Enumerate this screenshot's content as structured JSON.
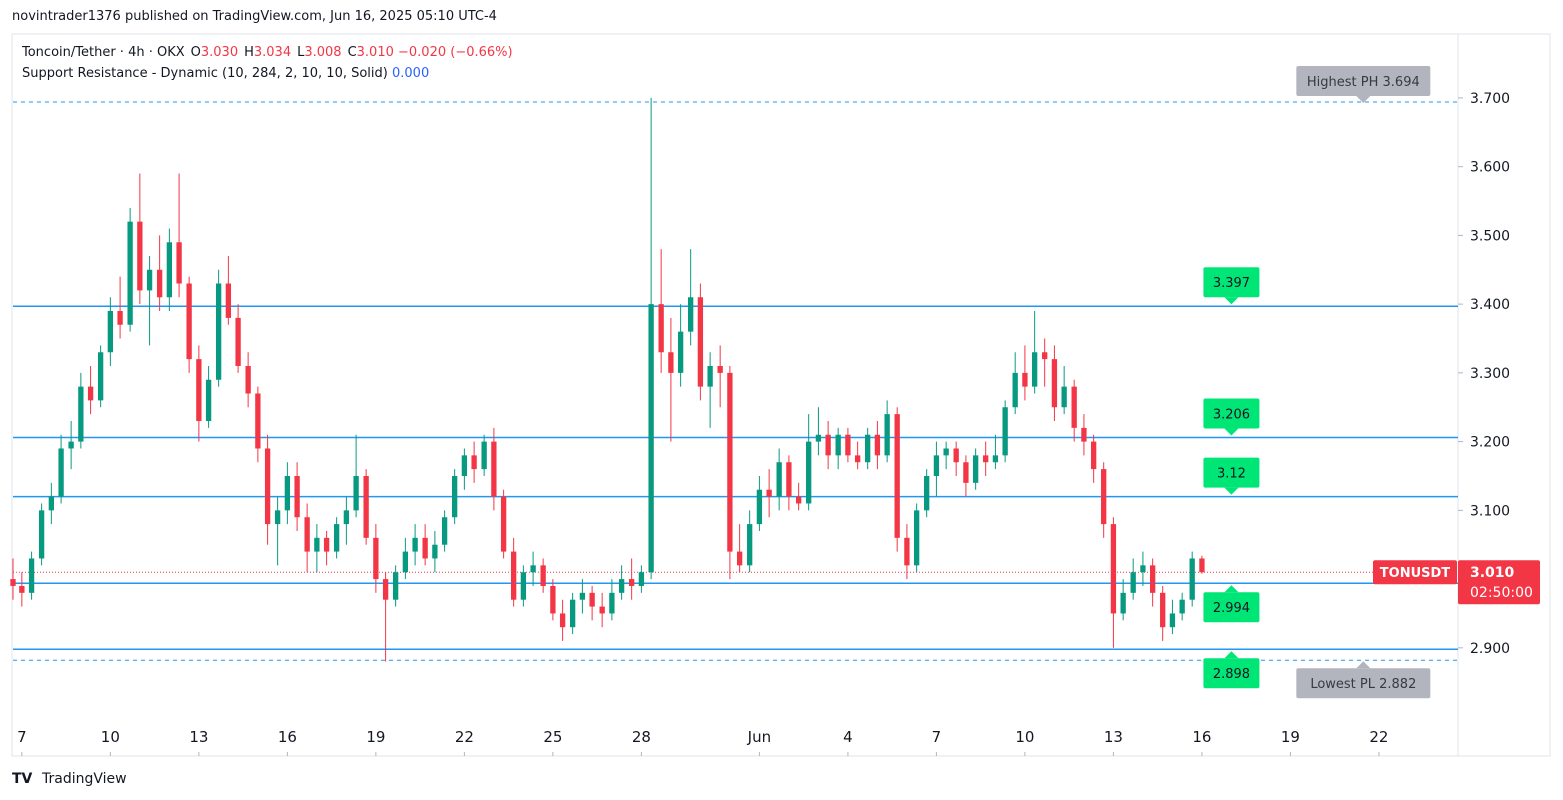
{
  "header": {
    "byline": "novintrader1376 published on TradingView.com, Jun 16, 2025 05:10 UTC-4",
    "pair": "Toncoin/Tether · 4h · OKX",
    "legend_values": [
      [
        "O",
        "3.030"
      ],
      [
        "H",
        "3.034"
      ],
      [
        "L",
        "3.008"
      ],
      [
        "C",
        "3.010"
      ]
    ],
    "change": "−0.020 (−0.66%)",
    "indicator": "Support Resistance - Dynamic (10, 284, 2, 10, 10, Solid)",
    "indicator_value": "0.000"
  },
  "footer": {
    "brand": "TradingView"
  },
  "chart_data": {
    "type": "candlestick",
    "up_color": "#089981",
    "down_color": "#f23645",
    "level_color": "#2196f3",
    "level_tag_color": "#00e676",
    "extreme_tag_color": "#b2b5be",
    "xlim": [
      -0.3,
      48.68
    ],
    "ylim": [
      2.795,
      3.793
    ],
    "xticks": [
      {
        "value": 0,
        "label": "7"
      },
      {
        "value": 3,
        "label": "10"
      },
      {
        "value": 6,
        "label": "13"
      },
      {
        "value": 9,
        "label": "16"
      },
      {
        "value": 12,
        "label": "19"
      },
      {
        "value": 15,
        "label": "22"
      },
      {
        "value": 18,
        "label": "25"
      },
      {
        "value": 21,
        "label": "28"
      },
      {
        "value": 25,
        "label": "Jun"
      },
      {
        "value": 28,
        "label": "4"
      },
      {
        "value": 31,
        "label": "7"
      },
      {
        "value": 34,
        "label": "10"
      },
      {
        "value": 37,
        "label": "13"
      },
      {
        "value": 40,
        "label": "16"
      },
      {
        "value": 43,
        "label": "19"
      },
      {
        "value": 46,
        "label": "22"
      }
    ],
    "yticks": [
      {
        "value": 2.9,
        "label": "2.900"
      },
      {
        "value": 3.0,
        "label": "3.000"
      },
      {
        "value": 3.1,
        "label": "3.100"
      },
      {
        "value": 3.2,
        "label": "3.200"
      },
      {
        "value": 3.3,
        "label": "3.300"
      },
      {
        "value": 3.4,
        "label": "3.400"
      },
      {
        "value": 3.5,
        "label": "3.500"
      },
      {
        "value": 3.6,
        "label": "3.600"
      },
      {
        "value": 3.7,
        "label": "3.700"
      }
    ],
    "levels": [
      3.397,
      3.206,
      3.12,
      2.994,
      2.898
    ],
    "extremes": [
      {
        "value": 3.694,
        "label": "Highest PH 3.694"
      },
      {
        "value": 2.882,
        "label": "Lowest PL 2.882"
      }
    ],
    "symbol": "TONUSDT",
    "last_price": {
      "value": 3.01,
      "label": "3.010"
    },
    "countdown": "02:50:00",
    "candles": [
      [
        -0.3,
        3.0,
        3.03,
        2.97,
        2.99
      ],
      [
        0.0,
        2.99,
        3.01,
        2.96,
        2.98
      ],
      [
        0.33,
        2.98,
        3.04,
        2.97,
        3.03
      ],
      [
        0.67,
        3.03,
        3.11,
        3.02,
        3.1
      ],
      [
        1.0,
        3.1,
        3.14,
        3.08,
        3.12
      ],
      [
        1.33,
        3.12,
        3.21,
        3.11,
        3.19
      ],
      [
        1.67,
        3.19,
        3.23,
        3.16,
        3.2
      ],
      [
        2.0,
        3.2,
        3.3,
        3.19,
        3.28
      ],
      [
        2.33,
        3.28,
        3.31,
        3.24,
        3.26
      ],
      [
        2.67,
        3.26,
        3.34,
        3.25,
        3.33
      ],
      [
        3.0,
        3.33,
        3.41,
        3.31,
        3.39
      ],
      [
        3.33,
        3.39,
        3.44,
        3.35,
        3.37
      ],
      [
        3.67,
        3.37,
        3.54,
        3.36,
        3.52
      ],
      [
        4.0,
        3.52,
        3.59,
        3.4,
        3.42
      ],
      [
        4.33,
        3.42,
        3.47,
        3.34,
        3.45
      ],
      [
        4.67,
        3.45,
        3.5,
        3.39,
        3.41
      ],
      [
        5.0,
        3.41,
        3.51,
        3.39,
        3.49
      ],
      [
        5.33,
        3.49,
        3.59,
        3.41,
        3.43
      ],
      [
        5.67,
        3.43,
        3.44,
        3.3,
        3.32
      ],
      [
        6.0,
        3.32,
        3.34,
        3.2,
        3.23
      ],
      [
        6.33,
        3.23,
        3.31,
        3.22,
        3.29
      ],
      [
        6.67,
        3.29,
        3.45,
        3.28,
        3.43
      ],
      [
        7.0,
        3.43,
        3.47,
        3.37,
        3.38
      ],
      [
        7.33,
        3.38,
        3.4,
        3.3,
        3.31
      ],
      [
        7.67,
        3.31,
        3.33,
        3.25,
        3.27
      ],
      [
        8.0,
        3.27,
        3.28,
        3.17,
        3.19
      ],
      [
        8.33,
        3.19,
        3.21,
        3.05,
        3.08
      ],
      [
        8.67,
        3.08,
        3.12,
        3.02,
        3.1
      ],
      [
        9.0,
        3.1,
        3.17,
        3.08,
        3.15
      ],
      [
        9.33,
        3.15,
        3.17,
        3.07,
        3.09
      ],
      [
        9.67,
        3.09,
        3.11,
        3.01,
        3.04
      ],
      [
        10.0,
        3.04,
        3.08,
        3.01,
        3.06
      ],
      [
        10.33,
        3.06,
        3.07,
        3.02,
        3.04
      ],
      [
        10.67,
        3.04,
        3.09,
        3.03,
        3.08
      ],
      [
        11.0,
        3.08,
        3.12,
        3.05,
        3.1
      ],
      [
        11.33,
        3.1,
        3.21,
        3.09,
        3.15
      ],
      [
        11.67,
        3.15,
        3.16,
        3.05,
        3.06
      ],
      [
        12.0,
        3.06,
        3.08,
        2.98,
        3.0
      ],
      [
        12.33,
        3.0,
        3.01,
        2.88,
        2.97
      ],
      [
        12.67,
        2.97,
        3.02,
        2.96,
        3.01
      ],
      [
        13.0,
        3.01,
        3.06,
        3.0,
        3.04
      ],
      [
        13.33,
        3.04,
        3.08,
        3.02,
        3.06
      ],
      [
        13.67,
        3.06,
        3.08,
        3.02,
        3.03
      ],
      [
        14.0,
        3.03,
        3.07,
        3.01,
        3.05
      ],
      [
        14.33,
        3.05,
        3.1,
        3.04,
        3.09
      ],
      [
        14.67,
        3.09,
        3.16,
        3.08,
        3.15
      ],
      [
        15.0,
        3.15,
        3.19,
        3.13,
        3.18
      ],
      [
        15.33,
        3.18,
        3.2,
        3.14,
        3.16
      ],
      [
        15.67,
        3.16,
        3.21,
        3.15,
        3.2
      ],
      [
        16.0,
        3.2,
        3.22,
        3.1,
        3.12
      ],
      [
        16.33,
        3.12,
        3.13,
        3.03,
        3.04
      ],
      [
        16.67,
        3.04,
        3.06,
        2.96,
        2.97
      ],
      [
        17.0,
        2.97,
        3.02,
        2.96,
        3.01
      ],
      [
        17.33,
        3.01,
        3.04,
        2.99,
        3.02
      ],
      [
        17.67,
        3.02,
        3.03,
        2.98,
        2.99
      ],
      [
        18.0,
        2.99,
        3.0,
        2.94,
        2.95
      ],
      [
        18.33,
        2.95,
        2.97,
        2.91,
        2.93
      ],
      [
        18.67,
        2.93,
        2.98,
        2.92,
        2.97
      ],
      [
        19.0,
        2.97,
        3.0,
        2.95,
        2.98
      ],
      [
        19.33,
        2.98,
        2.99,
        2.94,
        2.96
      ],
      [
        19.67,
        2.96,
        2.98,
        2.93,
        2.95
      ],
      [
        20.0,
        2.95,
        3.0,
        2.94,
        2.98
      ],
      [
        20.33,
        2.98,
        3.02,
        2.97,
        3.0
      ],
      [
        20.67,
        3.0,
        3.03,
        2.97,
        2.99
      ],
      [
        21.0,
        2.99,
        3.02,
        2.98,
        3.01
      ],
      [
        21.33,
        3.01,
        3.7,
        3.0,
        3.4
      ],
      [
        21.67,
        3.4,
        3.48,
        3.3,
        3.33
      ],
      [
        22.0,
        3.33,
        3.38,
        3.2,
        3.3
      ],
      [
        22.33,
        3.3,
        3.4,
        3.28,
        3.36
      ],
      [
        22.67,
        3.36,
        3.48,
        3.34,
        3.41
      ],
      [
        23.0,
        3.41,
        3.43,
        3.26,
        3.28
      ],
      [
        23.33,
        3.28,
        3.33,
        3.22,
        3.31
      ],
      [
        23.67,
        3.31,
        3.34,
        3.25,
        3.3
      ],
      [
        24.0,
        3.3,
        3.31,
        3.0,
        3.04
      ],
      [
        24.33,
        3.04,
        3.08,
        3.01,
        3.02
      ],
      [
        24.67,
        3.02,
        3.1,
        3.01,
        3.08
      ],
      [
        25.0,
        3.08,
        3.15,
        3.07,
        3.13
      ],
      [
        25.33,
        3.13,
        3.16,
        3.09,
        3.12
      ],
      [
        25.67,
        3.12,
        3.19,
        3.1,
        3.17
      ],
      [
        26.0,
        3.17,
        3.18,
        3.1,
        3.12
      ],
      [
        26.33,
        3.12,
        3.14,
        3.1,
        3.11
      ],
      [
        26.67,
        3.11,
        3.24,
        3.1,
        3.2
      ],
      [
        27.0,
        3.2,
        3.25,
        3.18,
        3.21
      ],
      [
        27.33,
        3.21,
        3.23,
        3.16,
        3.18
      ],
      [
        27.67,
        3.18,
        3.22,
        3.16,
        3.21
      ],
      [
        28.0,
        3.21,
        3.22,
        3.17,
        3.18
      ],
      [
        28.33,
        3.18,
        3.2,
        3.16,
        3.17
      ],
      [
        28.67,
        3.17,
        3.22,
        3.16,
        3.21
      ],
      [
        29.0,
        3.21,
        3.23,
        3.16,
        3.18
      ],
      [
        29.33,
        3.18,
        3.26,
        3.17,
        3.24
      ],
      [
        29.67,
        3.24,
        3.25,
        3.04,
        3.06
      ],
      [
        30.0,
        3.06,
        3.08,
        3.0,
        3.02
      ],
      [
        30.33,
        3.02,
        3.11,
        3.01,
        3.1
      ],
      [
        30.67,
        3.1,
        3.16,
        3.09,
        3.15
      ],
      [
        31.0,
        3.15,
        3.2,
        3.12,
        3.18
      ],
      [
        31.33,
        3.18,
        3.2,
        3.16,
        3.19
      ],
      [
        31.67,
        3.19,
        3.2,
        3.15,
        3.17
      ],
      [
        32.0,
        3.17,
        3.18,
        3.12,
        3.14
      ],
      [
        32.33,
        3.14,
        3.19,
        3.13,
        3.18
      ],
      [
        32.67,
        3.18,
        3.2,
        3.15,
        3.17
      ],
      [
        33.0,
        3.17,
        3.21,
        3.16,
        3.18
      ],
      [
        33.33,
        3.18,
        3.26,
        3.17,
        3.25
      ],
      [
        33.67,
        3.25,
        3.33,
        3.24,
        3.3
      ],
      [
        34.0,
        3.3,
        3.34,
        3.26,
        3.28
      ],
      [
        34.33,
        3.28,
        3.39,
        3.27,
        3.33
      ],
      [
        34.67,
        3.33,
        3.35,
        3.28,
        3.32
      ],
      [
        35.0,
        3.32,
        3.34,
        3.23,
        3.25
      ],
      [
        35.33,
        3.25,
        3.31,
        3.24,
        3.28
      ],
      [
        35.67,
        3.28,
        3.29,
        3.2,
        3.22
      ],
      [
        36.0,
        3.22,
        3.24,
        3.18,
        3.2
      ],
      [
        36.33,
        3.2,
        3.21,
        3.14,
        3.16
      ],
      [
        36.67,
        3.16,
        3.17,
        3.06,
        3.08
      ],
      [
        37.0,
        3.08,
        3.09,
        2.9,
        2.95
      ],
      [
        37.33,
        2.95,
        3.0,
        2.94,
        2.98
      ],
      [
        37.67,
        2.98,
        3.03,
        2.97,
        3.01
      ],
      [
        38.0,
        3.01,
        3.04,
        2.99,
        3.02
      ],
      [
        38.33,
        3.02,
        3.03,
        2.96,
        2.98
      ],
      [
        38.67,
        2.98,
        2.99,
        2.91,
        2.93
      ],
      [
        39.0,
        2.93,
        2.97,
        2.92,
        2.95
      ],
      [
        39.33,
        2.95,
        2.98,
        2.94,
        2.97
      ],
      [
        39.67,
        2.97,
        3.04,
        2.96,
        3.03
      ],
      [
        40.0,
        3.03,
        3.034,
        3.008,
        3.01
      ]
    ]
  }
}
